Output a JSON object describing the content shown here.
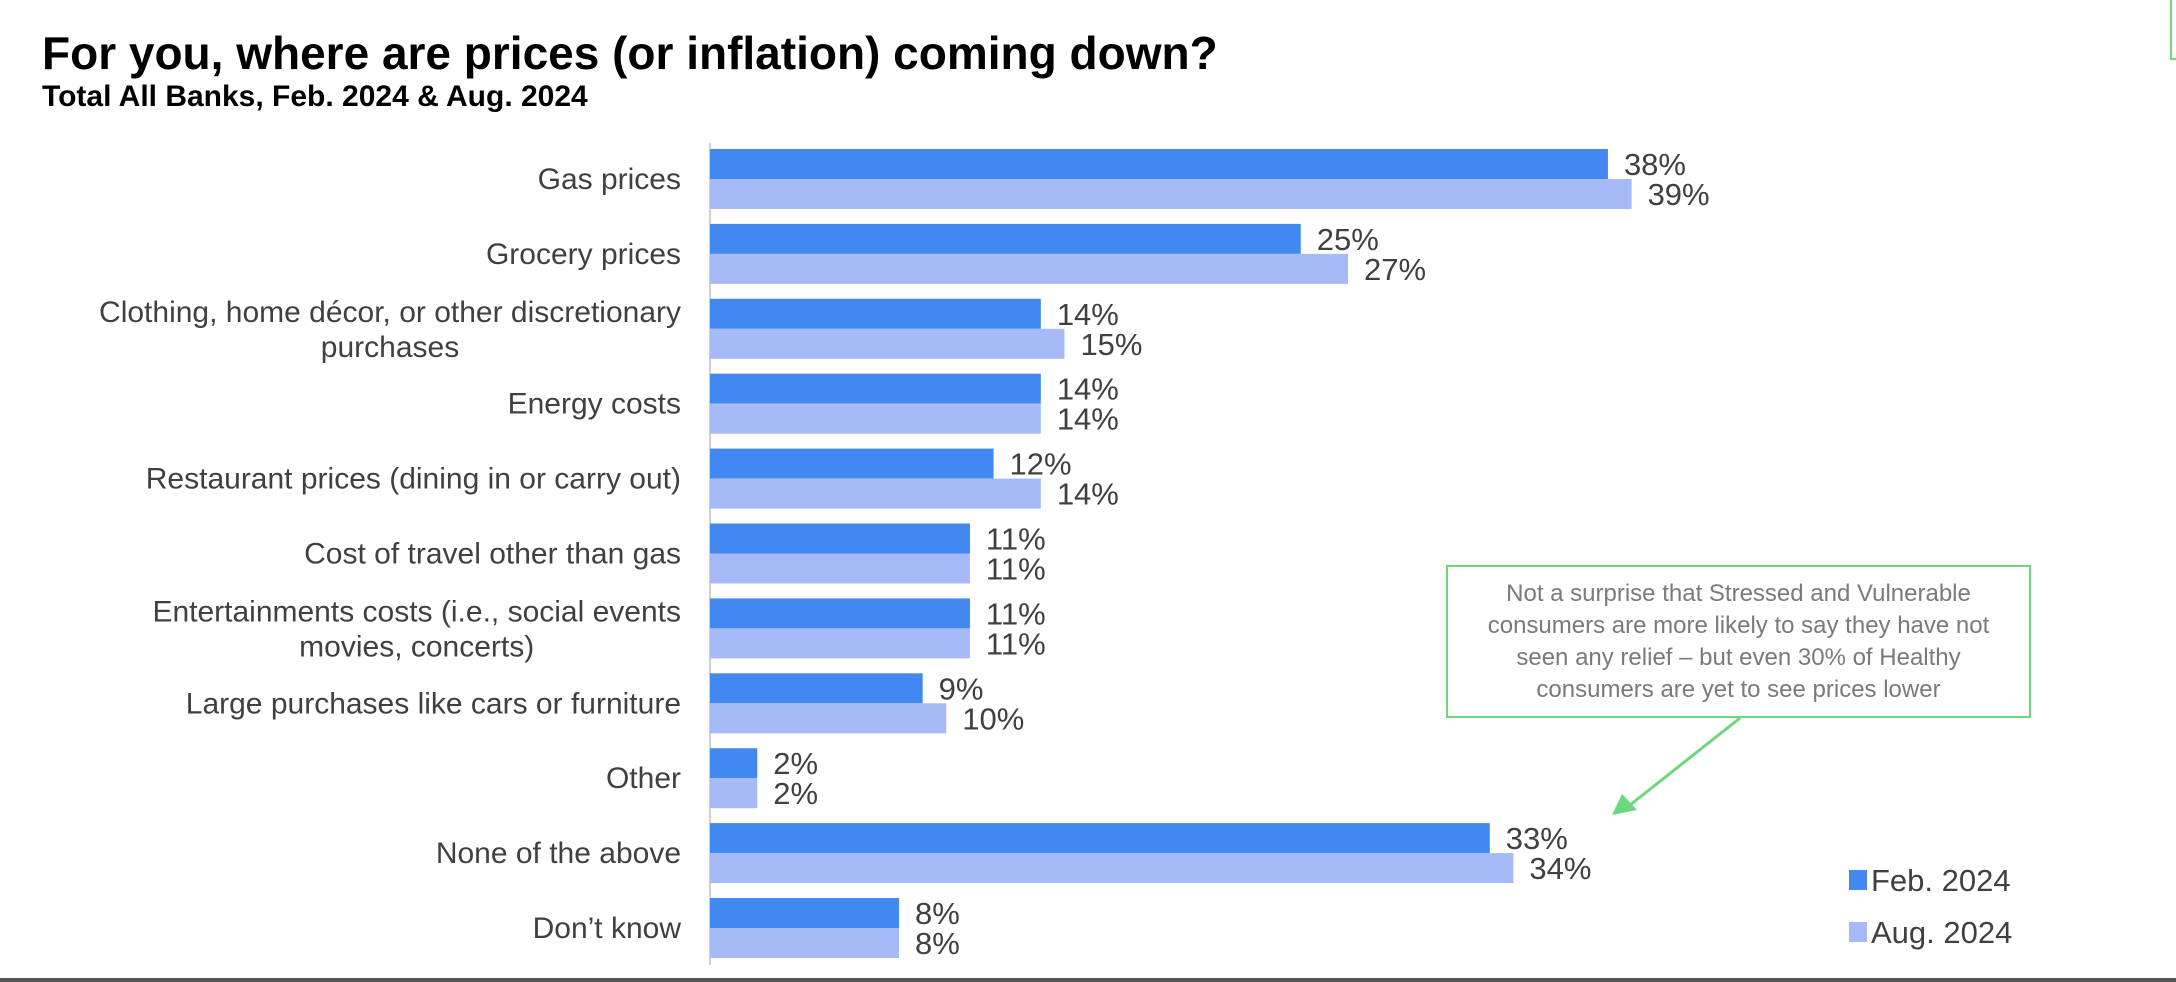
{
  "chart_data": {
    "type": "bar",
    "orientation": "horizontal",
    "title": "For you, where are prices (or inflation) coming down?",
    "subtitle": "Total All Banks, Feb. 2024 & Aug. 2024",
    "categories": [
      [
        "Gas prices"
      ],
      [
        "Grocery prices"
      ],
      [
        "Clothing, home décor, or other discretionary",
        "purchases"
      ],
      [
        "Energy costs"
      ],
      [
        "Restaurant prices (dining in or carry out)"
      ],
      [
        "Cost of travel other than gas"
      ],
      [
        "Entertainments costs (i.e., social events",
        "movies, concerts)"
      ],
      [
        "Large purchases like cars or furniture"
      ],
      [
        "Other"
      ],
      [
        "None of the above"
      ],
      [
        "Don’t know"
      ]
    ],
    "series": [
      {
        "name": "Feb. 2024",
        "color": "#4188f0",
        "values": [
          38,
          25,
          14,
          14,
          12,
          11,
          11,
          9,
          2,
          33,
          8
        ]
      },
      {
        "name": "Aug. 2024",
        "color": "#a6baf7",
        "values": [
          39,
          27,
          15,
          14,
          14,
          11,
          11,
          10,
          2,
          34,
          8
        ]
      }
    ],
    "value_suffix": "%",
    "xlim": [
      0,
      40
    ],
    "grid": false,
    "legend_position": "bottom-right"
  },
  "callout": {
    "text": "Not a surprise that Stressed and Vulnerable consumers are more likely to say they have not seen any relief – but even 30% of Healthy consumers are yet to see prices lower",
    "border_color": "#6bd97b"
  }
}
